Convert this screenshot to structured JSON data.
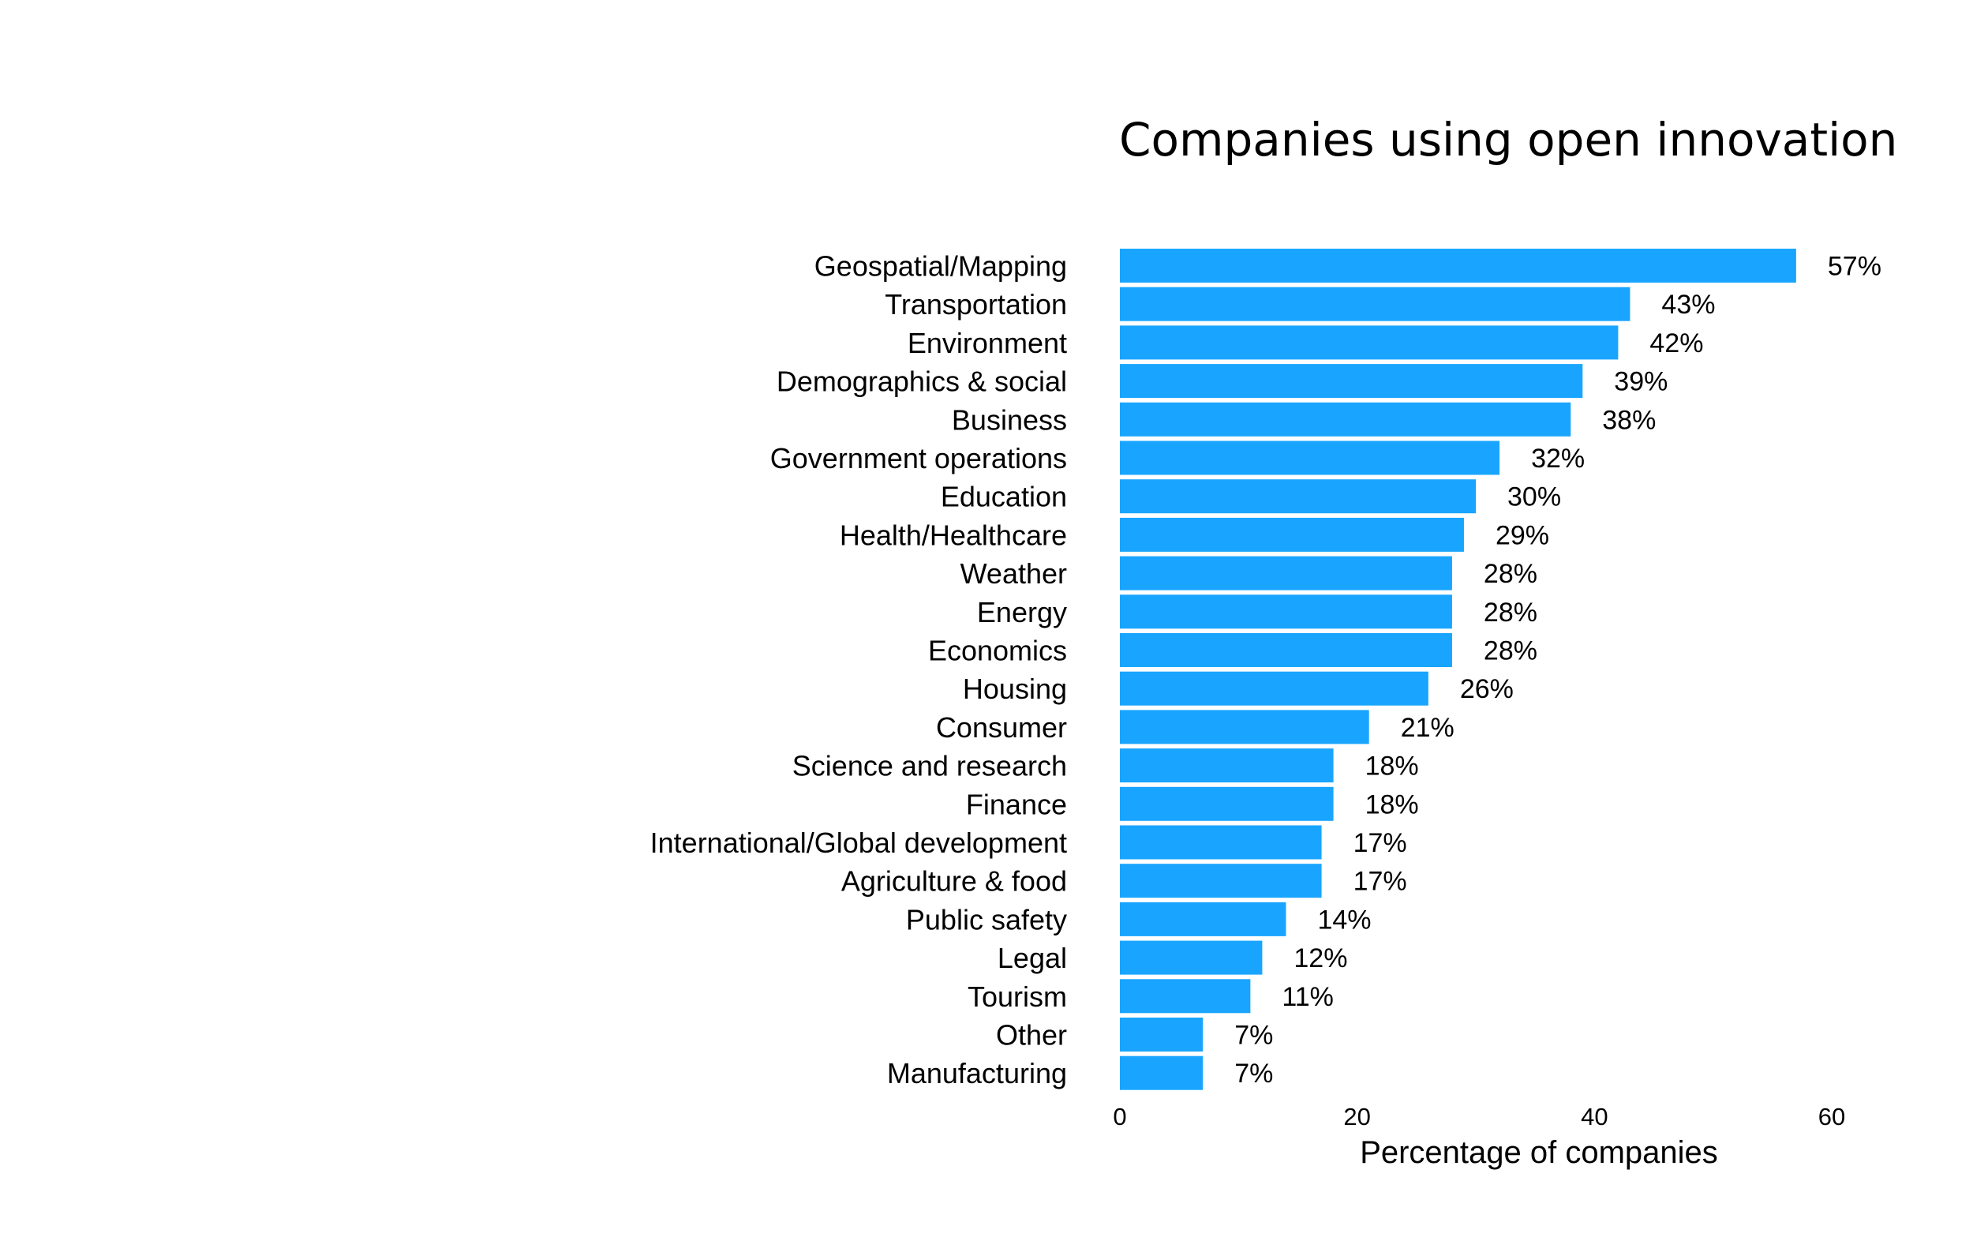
{
  "chart_data": {
    "type": "bar",
    "orientation": "horizontal",
    "title": "Companies using open innovation",
    "xlabel": "Percentage of companies",
    "ylabel": "",
    "xlim": [
      0,
      60
    ],
    "x_ticks": [
      "0",
      "20",
      "40",
      "60"
    ],
    "bar_color": "#19a5ff",
    "grid": false,
    "legend": "none",
    "categories": [
      "Geospatial/Mapping",
      "Transportation",
      "Environment",
      "Demographics & social",
      "Business",
      "Government operations",
      "Education",
      "Health/Healthcare",
      "Weather",
      "Energy",
      "Economics",
      "Housing",
      "Consumer",
      "Science and research",
      "Finance",
      "International/Global development",
      "Agriculture & food",
      "Public safety",
      "Legal",
      "Tourism",
      "Other",
      "Manufacturing"
    ],
    "values": [
      57,
      43,
      42,
      39,
      38,
      32,
      30,
      29,
      28,
      28,
      28,
      26,
      21,
      18,
      18,
      17,
      17,
      14,
      12,
      11,
      7,
      7
    ],
    "value_labels": [
      "57%",
      "43%",
      "42%",
      "39%",
      "38%",
      "32%",
      "30%",
      "29%",
      "28%",
      "28%",
      "28%",
      "26%",
      "21%",
      "18%",
      "18%",
      "17%",
      "17%",
      "14%",
      "12%",
      "11%",
      "7%",
      "7%"
    ]
  }
}
